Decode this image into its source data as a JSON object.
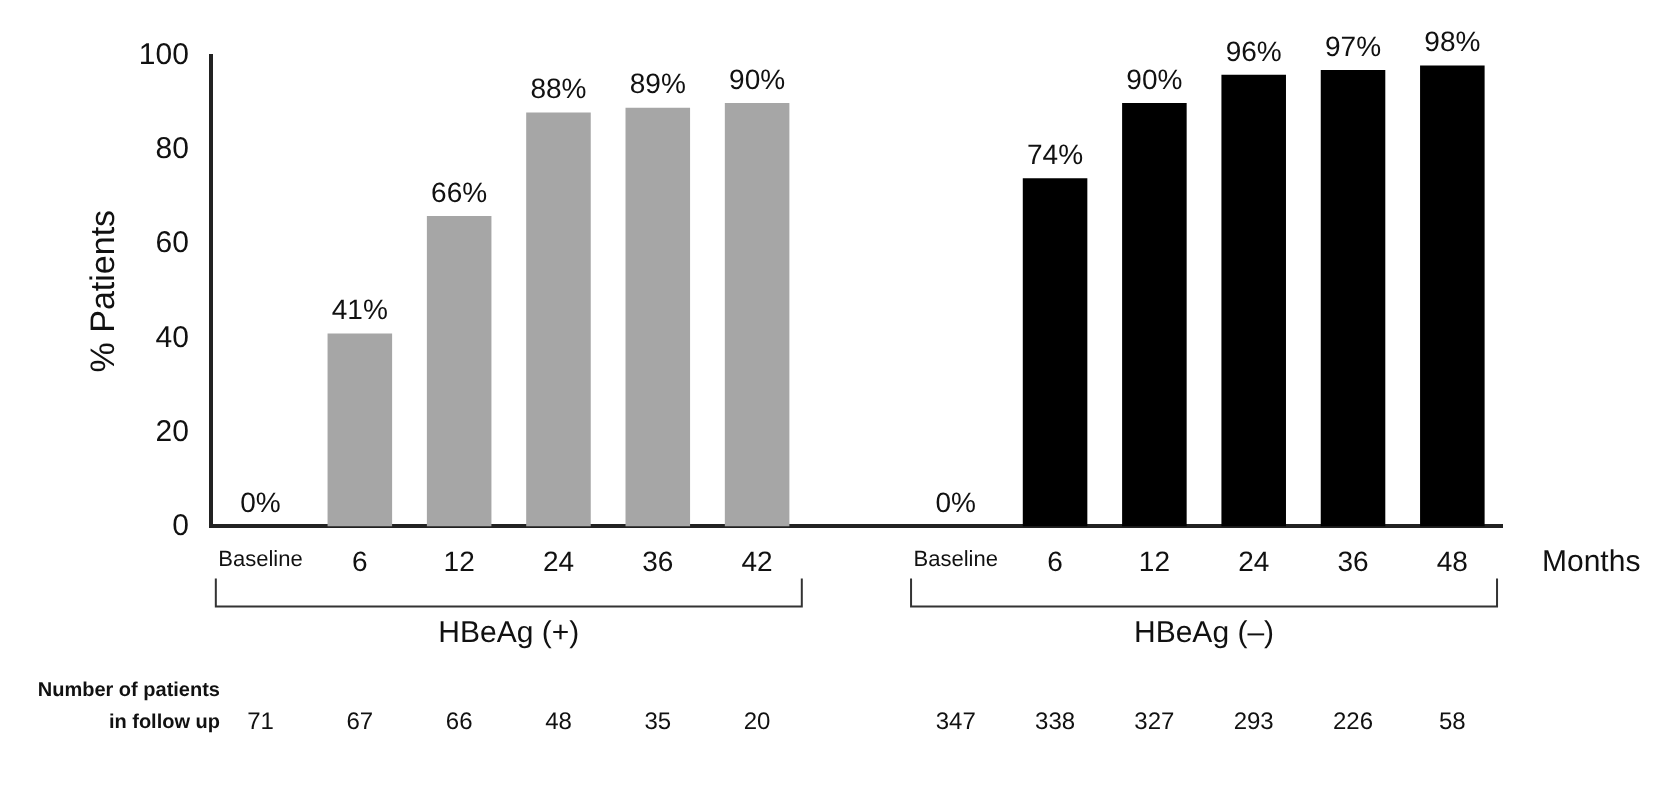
{
  "chart_data": {
    "type": "bar",
    "ylabel": "% Patients",
    "xlabel": "Months",
    "categories": [
      "Baseline",
      "6",
      "12",
      "24",
      "36",
      "42",
      null,
      "Baseline",
      "6",
      "12",
      "24",
      "36",
      "48"
    ],
    "series": [
      {
        "name": "HBeAg (+)",
        "color": "#a6a6a6",
        "values": [
          0,
          41,
          66,
          88,
          89,
          90,
          null,
          null,
          null,
          null,
          null,
          null,
          null
        ],
        "value_labels": [
          "0%",
          "41%",
          "66%",
          "88%",
          "89%",
          "90%",
          null,
          null,
          null,
          null,
          null,
          null,
          null
        ]
      },
      {
        "name": "HBeAg (–)",
        "color": "#000000",
        "values": [
          null,
          null,
          null,
          null,
          null,
          null,
          null,
          0,
          74,
          90,
          96,
          97,
          98
        ],
        "value_labels": [
          null,
          null,
          null,
          null,
          null,
          null,
          null,
          "0%",
          "74%",
          "90%",
          "96%",
          "97%",
          "98%"
        ]
      }
    ],
    "ylim": [
      0,
      100
    ],
    "yticks": [
      0,
      20,
      40,
      60,
      80,
      100
    ],
    "grid": false,
    "legend": false,
    "annotations": [
      "Number of patients\nin follow up",
      "71",
      "67",
      "66",
      "48",
      "35",
      "20",
      "347",
      "338",
      "327",
      "293",
      "226",
      "58"
    ]
  }
}
